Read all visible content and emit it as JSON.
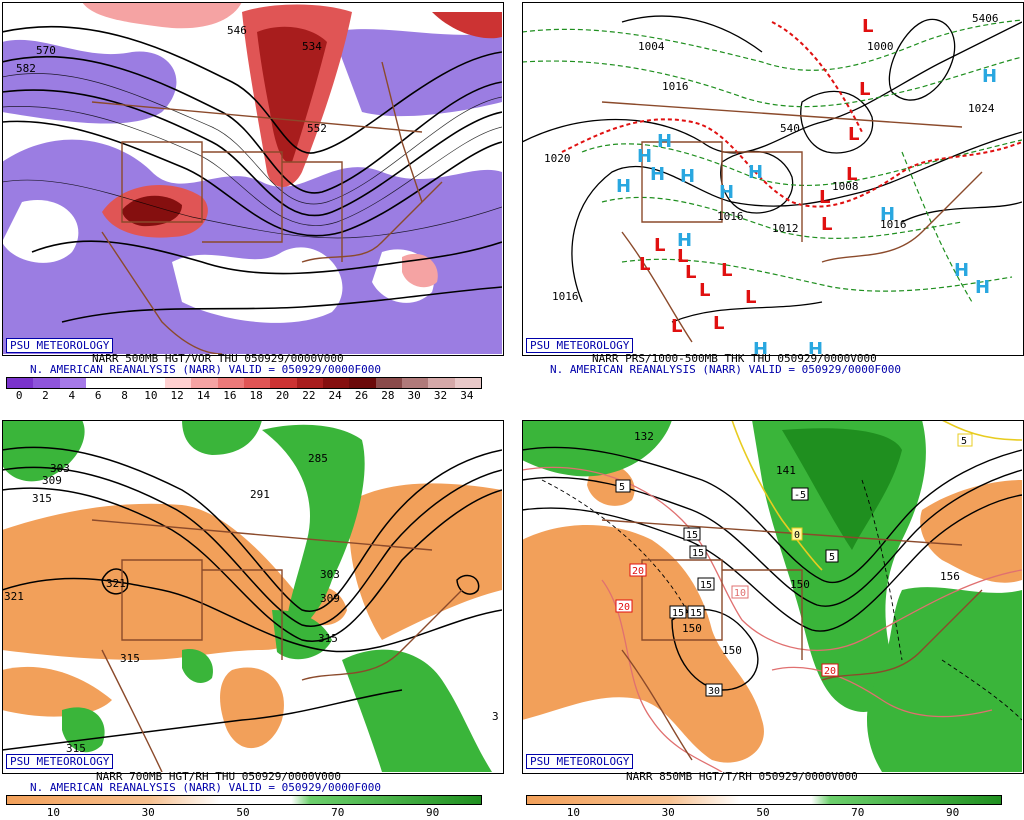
{
  "panels": {
    "p500": {
      "tag": "PSU METEOROLOGY",
      "title_line1": "NARR 500MB HGT/VOR THU 050929/0000V000",
      "title_line2": "N. AMERICAN REANALYSIS (NARR) VALID = 050929/0000F000",
      "colorbar_ticks": [
        "0",
        "2",
        "4",
        "6",
        "8",
        "10",
        "12",
        "14",
        "16",
        "18",
        "20",
        "22",
        "24",
        "26",
        "28",
        "30",
        "32",
        "34"
      ],
      "colorbar_colors": [
        "#7a33cc",
        "#8f55db",
        "#a67ae8",
        "#ffffff",
        "#ffffff",
        "#ffffff",
        "#ffd0d0",
        "#f5a3a3",
        "#ec7a7a",
        "#e05555",
        "#cc3333",
        "#a81d1d",
        "#850f0f",
        "#6b0a0a",
        "#8a4a4a",
        "#b07a7a",
        "#d4a8a8",
        "#e8c8c8"
      ],
      "contour_labels": [
        "570",
        "582",
        "546",
        "534",
        "552"
      ]
    },
    "psfc": {
      "tag": "PSU METEOROLOGY",
      "title_line1": "NARR PRS/1000-500MB THK THU 050929/0000V000",
      "title_line2": "N. AMERICAN REANALYSIS (NARR) VALID = 050929/0000F000",
      "contour_labels": [
        "1004",
        "1016",
        "1020",
        "1024",
        "1008",
        "1016",
        "1012",
        "1016",
        "5406",
        "1000",
        "540",
        "1016"
      ],
      "high_symbol": "H",
      "low_symbol": "L"
    },
    "p700": {
      "tag": "PSU METEOROLOGY",
      "title_line1": "NARR 700MB HGT/RH THU 050929/0000V000",
      "title_line2": "N. AMERICAN REANALYSIS (NARR) VALID = 050929/0000F000",
      "colorbar_ticks": [
        "10",
        "30",
        "50",
        "70",
        "90"
      ],
      "contour_labels": [
        "303",
        "309",
        "315",
        "321",
        "321",
        "315",
        "285",
        "291",
        "303",
        "309",
        "315",
        "315",
        "3"
      ]
    },
    "p850": {
      "tag": "PSU METEOROLOGY",
      "title_line1": "NARR 850MB HGT/T/RH 050929/0000V000",
      "colorbar_ticks": [
        "10",
        "30",
        "50",
        "70",
        "90"
      ],
      "contour_labels": [
        "132",
        "5",
        "15",
        "15",
        "15",
        "15",
        "15",
        "20",
        "20",
        "10",
        "30",
        "20",
        "150",
        "150",
        "150",
        "156",
        "141",
        "-5",
        "5",
        "0",
        "5"
      ]
    }
  },
  "colors": {
    "rh_dry": "#f2a05a",
    "rh_moist": "#3ab53a",
    "rh_moist_dark": "#1f8f1f",
    "vorticity_neg": "#8a66dd",
    "vorticity_pos": "#cc2f2f",
    "high_color": "#29a7e0",
    "low_color": "#e01010",
    "map_borders": "#8b4a2b"
  }
}
